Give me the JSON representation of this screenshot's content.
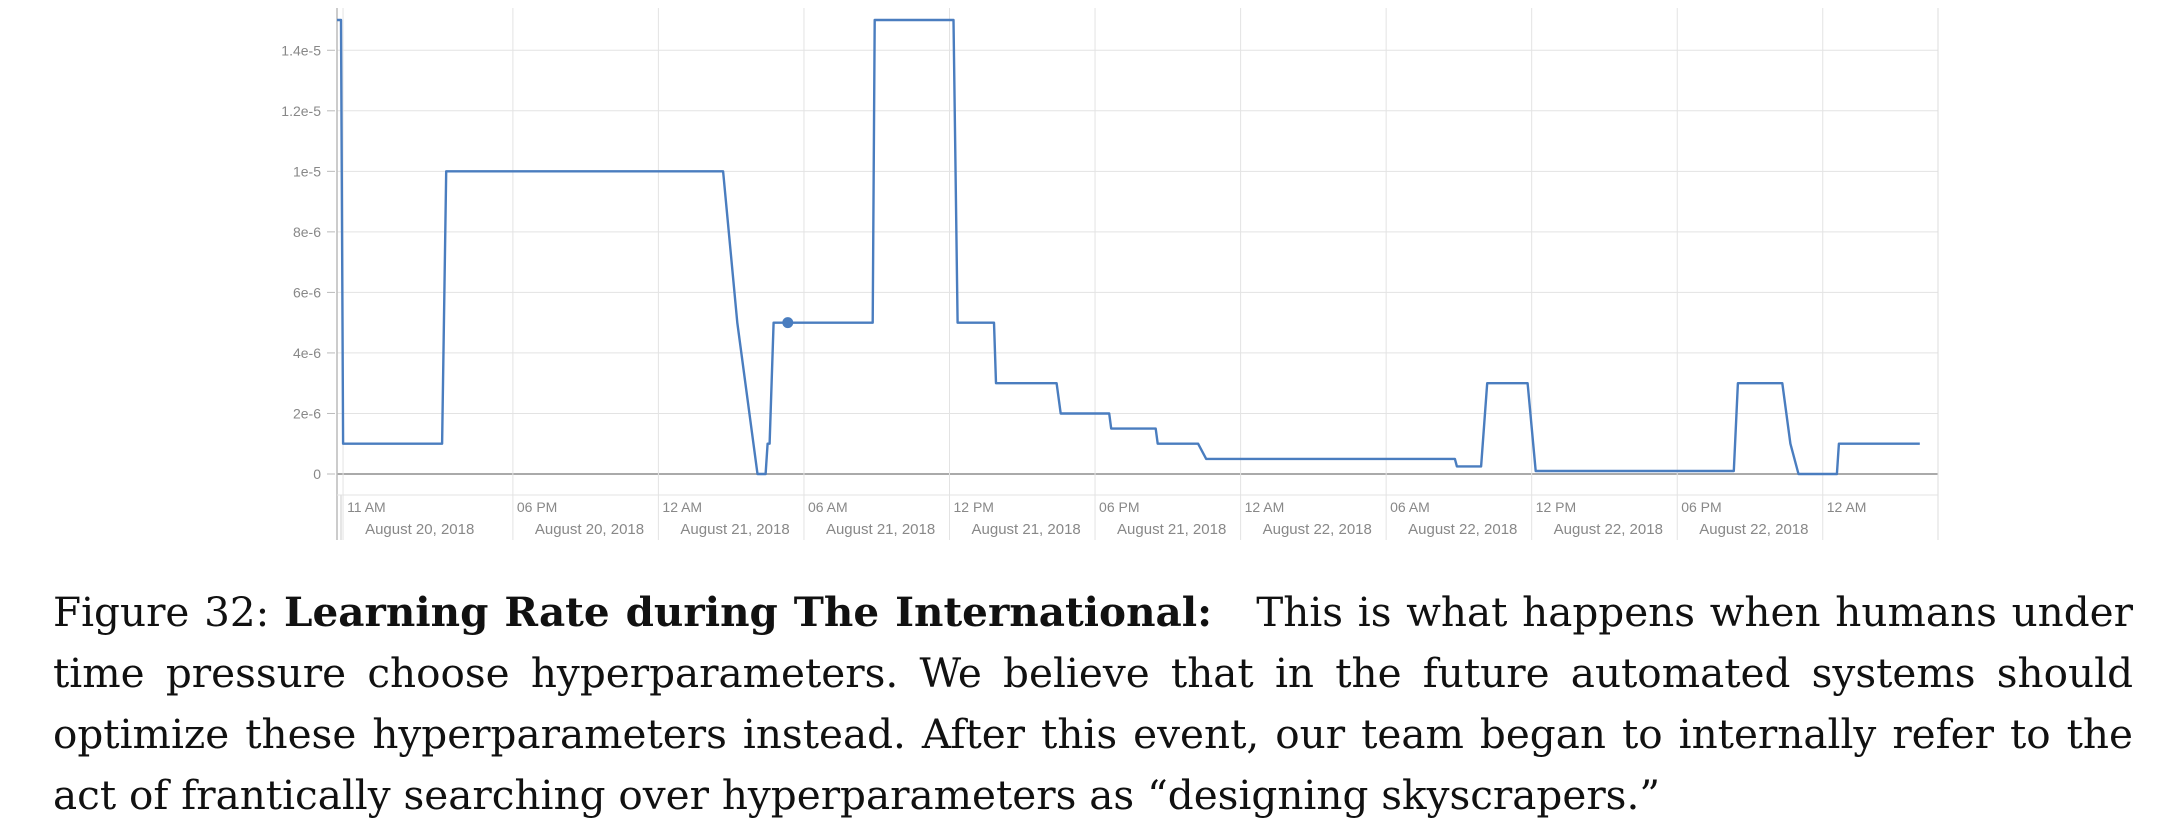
{
  "chart_data": {
    "type": "line",
    "title": "",
    "xlabel": "",
    "ylabel": "",
    "grid": true,
    "ylim": [
      0,
      1.5e-05
    ],
    "y_ticks": [
      {
        "value": 0,
        "label": "0"
      },
      {
        "value": 2e-06,
        "label": "2e-6"
      },
      {
        "value": 4e-06,
        "label": "4e-6"
      },
      {
        "value": 6e-06,
        "label": "6e-6"
      },
      {
        "value": 8e-06,
        "label": "8e-6"
      },
      {
        "value": 1e-05,
        "label": "1e-5"
      },
      {
        "value": 1.2e-05,
        "label": "1.2e-5"
      },
      {
        "value": 1.4e-05,
        "label": "1.4e-5"
      }
    ],
    "xlim": [
      "2018-08-20 10:45",
      "2018-08-23 04:45"
    ],
    "x_ticks": [
      {
        "value": "2018-08-20 11:00",
        "label": "11 AM"
      },
      {
        "value": "2018-08-20 18:00",
        "label": "06 PM"
      },
      {
        "value": "2018-08-21 00:00",
        "label": "12 AM"
      },
      {
        "value": "2018-08-21 06:00",
        "label": "06 AM"
      },
      {
        "value": "2018-08-21 12:00",
        "label": "12 PM"
      },
      {
        "value": "2018-08-21 18:00",
        "label": "06 PM"
      },
      {
        "value": "2018-08-22 00:00",
        "label": "12 AM"
      },
      {
        "value": "2018-08-22 06:00",
        "label": "06 AM"
      },
      {
        "value": "2018-08-22 12:00",
        "label": "12 PM"
      },
      {
        "value": "2018-08-22 18:00",
        "label": "06 PM"
      },
      {
        "value": "2018-08-23 00:00",
        "label": "12 AM"
      }
    ],
    "date_labels": [
      {
        "value": "2018-08-20 11:00",
        "label": "August 20, 2018"
      },
      {
        "value": "2018-08-20 18:00",
        "label": "August 20, 2018"
      },
      {
        "value": "2018-08-21 00:00",
        "label": "August 21, 2018"
      },
      {
        "value": "2018-08-21 06:00",
        "label": "August 21, 2018"
      },
      {
        "value": "2018-08-21 12:00",
        "label": "August 21, 2018"
      },
      {
        "value": "2018-08-21 18:00",
        "label": "August 21, 2018"
      },
      {
        "value": "2018-08-22 00:00",
        "label": "August 22, 2018"
      },
      {
        "value": "2018-08-22 06:00",
        "label": "August 22, 2018"
      },
      {
        "value": "2018-08-22 12:00",
        "label": "August 22, 2018"
      },
      {
        "value": "2018-08-22 18:00",
        "label": "August 22, 2018"
      }
    ],
    "series": [
      {
        "color": "#4a7dbf",
        "points": [
          {
            "x": "2018-08-20 10:45",
            "y": 1.5e-05
          },
          {
            "x": "2018-08-20 10:55",
            "y": 1.5e-05
          },
          {
            "x": "2018-08-20 11:00",
            "y": 1e-06
          },
          {
            "x": "2018-08-20 15:05",
            "y": 1e-06
          },
          {
            "x": "2018-08-20 15:15",
            "y": 1e-05
          },
          {
            "x": "2018-08-21 02:40",
            "y": 1e-05
          },
          {
            "x": "2018-08-21 03:15",
            "y": 5e-06
          },
          {
            "x": "2018-08-21 04:05",
            "y": 0
          },
          {
            "x": "2018-08-21 04:25",
            "y": 0
          },
          {
            "x": "2018-08-21 04:30",
            "y": 1e-06
          },
          {
            "x": "2018-08-21 04:35",
            "y": 1e-06
          },
          {
            "x": "2018-08-21 04:45",
            "y": 5e-06
          },
          {
            "x": "2018-08-21 08:50",
            "y": 5e-06
          },
          {
            "x": "2018-08-21 08:55",
            "y": 1.5e-05
          },
          {
            "x": "2018-08-21 12:10",
            "y": 1.5e-05
          },
          {
            "x": "2018-08-21 12:20",
            "y": 5e-06
          },
          {
            "x": "2018-08-21 13:50",
            "y": 5e-06
          },
          {
            "x": "2018-08-21 13:55",
            "y": 3e-06
          },
          {
            "x": "2018-08-21 16:25",
            "y": 3e-06
          },
          {
            "x": "2018-08-21 16:35",
            "y": 2e-06
          },
          {
            "x": "2018-08-21 18:35",
            "y": 2e-06
          },
          {
            "x": "2018-08-21 18:40",
            "y": 1.5e-06
          },
          {
            "x": "2018-08-21 20:30",
            "y": 1.5e-06
          },
          {
            "x": "2018-08-21 20:35",
            "y": 1e-06
          },
          {
            "x": "2018-08-21 22:15",
            "y": 1e-06
          },
          {
            "x": "2018-08-21 22:35",
            "y": 5e-07
          },
          {
            "x": "2018-08-22 08:50",
            "y": 5e-07
          },
          {
            "x": "2018-08-22 08:55",
            "y": 2.5e-07
          },
          {
            "x": "2018-08-22 09:55",
            "y": 2.5e-07
          },
          {
            "x": "2018-08-22 10:10",
            "y": 3e-06
          },
          {
            "x": "2018-08-22 11:50",
            "y": 3e-06
          },
          {
            "x": "2018-08-22 12:10",
            "y": 1e-07
          },
          {
            "x": "2018-08-22 20:20",
            "y": 1e-07
          },
          {
            "x": "2018-08-22 20:30",
            "y": 3e-06
          },
          {
            "x": "2018-08-22 22:20",
            "y": 3e-06
          },
          {
            "x": "2018-08-22 22:40",
            "y": 1e-06
          },
          {
            "x": "2018-08-22 23:00",
            "y": 0
          },
          {
            "x": "2018-08-23 00:35",
            "y": 0
          },
          {
            "x": "2018-08-23 00:40",
            "y": 1e-06
          },
          {
            "x": "2018-08-23 04:00",
            "y": 1e-06
          }
        ],
        "marker": {
          "x": "2018-08-21 05:20",
          "y": 5e-06
        }
      }
    ]
  },
  "caption": {
    "label": "Figure 32: ",
    "title": "Learning Rate during The International:",
    "text": "This is what happens when humans under time pressure choose hyperparameters. We believe that in the future automated systems should optimize these hyperparameters instead. After this event, our team began to internally refer to the act of frantically searching over hyperparameters as “designing skyscrapers.”"
  }
}
